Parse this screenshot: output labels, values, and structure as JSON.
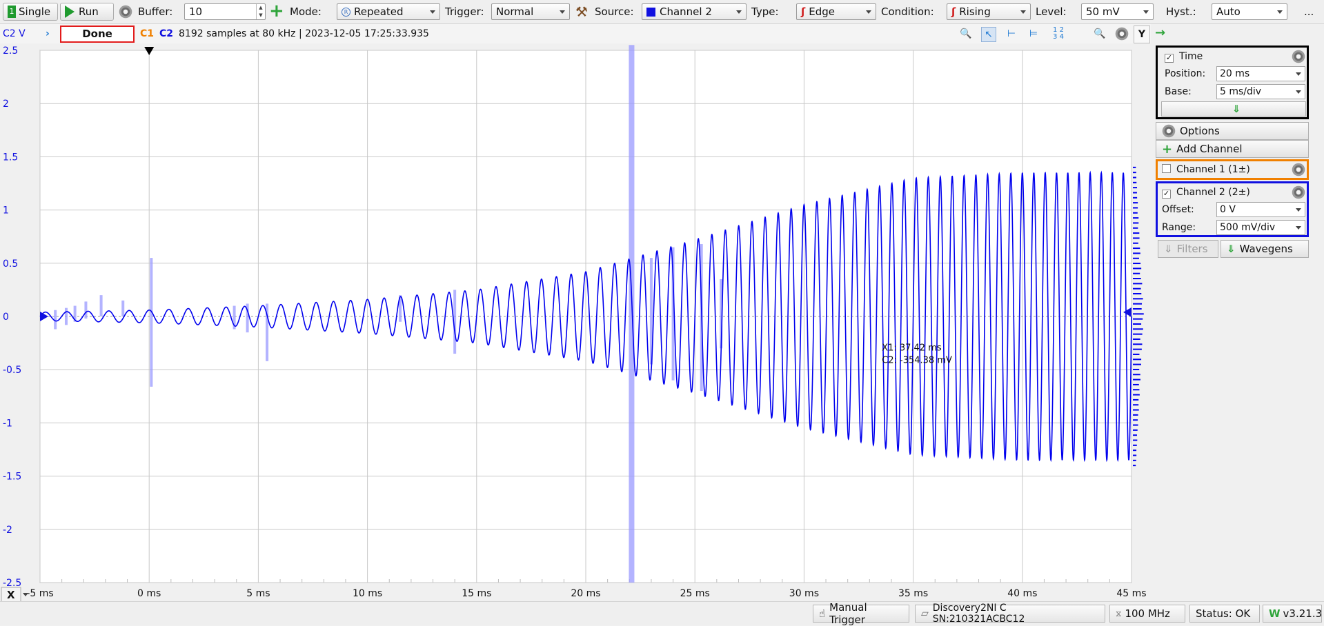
{
  "toolbar": {
    "single_label": "Single",
    "run_label": "Run",
    "buffer_label": "Buffer:",
    "buffer_value": "10",
    "mode_label": "Mode:",
    "mode_value": "Repeated",
    "trigger_label": "Trigger:",
    "trigger_value": "Normal",
    "source_label": "Source:",
    "source_value": "Channel 2",
    "type_label": "Type:",
    "type_value": "Edge",
    "condition_label": "Condition:",
    "condition_value": "Rising",
    "level_label": "Level:",
    "level_value": "50 mV",
    "hyst_label": "Hyst.:",
    "hyst_value": "Auto",
    "more_label": "..."
  },
  "plotbar": {
    "axis_unit": "C2 V",
    "status": "Done",
    "c1": "C1",
    "c2": "C2",
    "info": "8192 samples at 80 kHz  | 2023-12-05 17:25:33.935",
    "y_button": "Y"
  },
  "chart_data": {
    "type": "line",
    "series": [
      {
        "name": "C2",
        "color": "#0000ee",
        "amplitude_envelope": [
          [
            -5,
            0.04
          ],
          [
            0,
            0.06
          ],
          [
            5,
            0.1
          ],
          [
            10,
            0.16
          ],
          [
            15,
            0.25
          ],
          [
            20,
            0.42
          ],
          [
            25,
            0.72
          ],
          [
            30,
            1.05
          ],
          [
            35,
            1.3
          ],
          [
            40,
            1.35
          ],
          [
            45,
            1.35
          ]
        ]
      }
    ],
    "x_ticks": [
      "-5 ms",
      "0 ms",
      "5 ms",
      "10 ms",
      "15 ms",
      "20 ms",
      "25 ms",
      "30 ms",
      "35 ms",
      "40 ms",
      "45 ms"
    ],
    "y_ticks": [
      "2.5",
      "2",
      "1.5",
      "1",
      "0.5",
      "0",
      "-0.5",
      "-1",
      "-1.5",
      "-2",
      "-2.5"
    ],
    "xlim": [
      -5,
      45
    ],
    "ylim": [
      -2.5,
      2.5
    ],
    "x_unit": "ms",
    "grid": true,
    "cursor": {
      "x1_label": "X1: 37.42 ms",
      "c2_label": "C2: -354.38 mV"
    },
    "x_axis_label": "X",
    "colors": {
      "trace": "#0000ee",
      "highlight": "#9999ff",
      "grid": "#c8c8c8"
    }
  },
  "panel": {
    "time": {
      "title": "Time",
      "position_label": "Position:",
      "position_value": "20 ms",
      "base_label": "Base:",
      "base_value": "5 ms/div"
    },
    "options_label": "Options",
    "add_channel_label": "Add Channel",
    "channel1": {
      "title": "Channel 1 (1±)",
      "color": "#f08000"
    },
    "channel2": {
      "title": "Channel 2 (2±)",
      "color": "#1010e0",
      "offset_label": "Offset:",
      "offset_value": "0 V",
      "range_label": "Range:",
      "range_value": "500 mV/div"
    },
    "filters_label": "Filters",
    "wavegens_label": "Wavegens"
  },
  "statusbar": {
    "manual_trigger": "Manual Trigger",
    "device": "Discovery2NI C SN:210321ACBC12",
    "clock": "100 MHz",
    "status": "Status: OK",
    "version": "v3.21.3"
  }
}
